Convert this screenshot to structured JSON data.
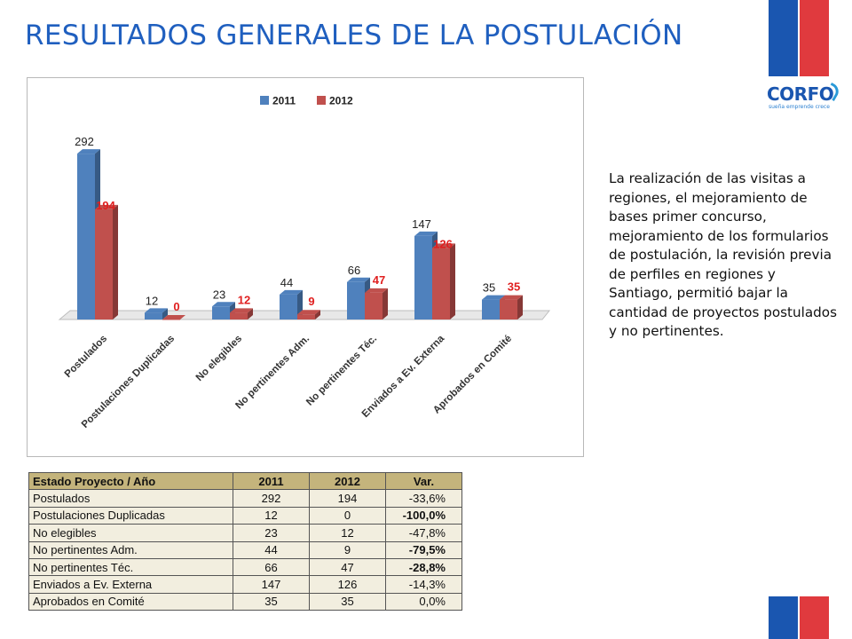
{
  "slide": {
    "title": "RESULTADOS GENERALES DE LA POSTULACIÓN",
    "logo_text": "CORFO",
    "logo_tagline": "sueña emprende crece",
    "body": "La realización de las visitas a regiones, el mejoramiento de bases primer concurso, mejoramiento de los formularios de postulación, la revisión previa de perfiles en regiones y Santiago, permitió bajar la cantidad de proyectos postulados y no pertinentes."
  },
  "colors": {
    "title": "#1f5fbf",
    "series_2011": "#4f81bd",
    "series_2012": "#c0504d",
    "label_2012": "#e02020",
    "flag_blue": "#1a56b0",
    "flag_red": "#e03a3e",
    "table_header": "#c4b47c",
    "table_cell": "#f2eedf"
  },
  "chart_data": {
    "type": "bar",
    "style": "3d-clustered",
    "categories": [
      "Postulados",
      "Postulaciones Duplicadas",
      "No elegibles",
      "No pertinentes Adm.",
      "No pertinentes Téc.",
      "Enviados a Ev. Externa",
      "Aprobados en Comité"
    ],
    "series": [
      {
        "name": "2011",
        "values": [
          292,
          12,
          23,
          44,
          66,
          147,
          35
        ]
      },
      {
        "name": "2012",
        "values": [
          194,
          0,
          12,
          9,
          47,
          126,
          35
        ]
      }
    ],
    "ylim": [
      0,
      300
    ],
    "legend_position": "top-center",
    "grid": false
  },
  "table": {
    "headers": [
      "Estado Proyecto / Año",
      "2011",
      "2012",
      "Var."
    ],
    "rows": [
      {
        "label": "Postulados",
        "v2011": "292",
        "v2012": "194",
        "var": "-33,6%",
        "bold": false
      },
      {
        "label": "Postulaciones Duplicadas",
        "v2011": "12",
        "v2012": "0",
        "var": "-100,0%",
        "bold": true
      },
      {
        "label": "No elegibles",
        "v2011": "23",
        "v2012": "12",
        "var": "-47,8%",
        "bold": false
      },
      {
        "label": "No pertinentes Adm.",
        "v2011": "44",
        "v2012": "9",
        "var": "-79,5%",
        "bold": true
      },
      {
        "label": "No pertinentes Téc.",
        "v2011": "66",
        "v2012": "47",
        "var": "-28,8%",
        "bold": true
      },
      {
        "label": "Enviados a Ev. Externa",
        "v2011": "147",
        "v2012": "126",
        "var": "-14,3%",
        "bold": false
      },
      {
        "label": "Aprobados en Comité",
        "v2011": "35",
        "v2012": "35",
        "var": "0,0%",
        "bold": false
      }
    ]
  }
}
